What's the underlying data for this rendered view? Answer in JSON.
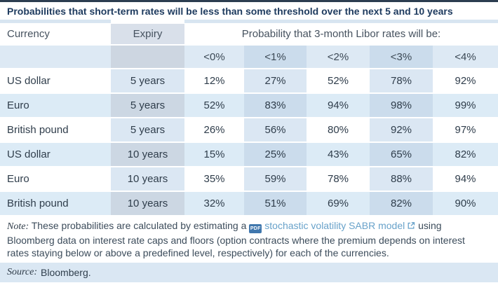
{
  "title": "Probabilities that short-term rates will be less than some threshold over the next 5 and 10 years",
  "colors": {
    "top_border": "#2c3d50",
    "title_navy": "#1d3a5e",
    "row_blue": "#dcebf6",
    "stripe_blue": "#dbe7f3",
    "stripe_overlap": "#cbdcec",
    "expiry_gray_blue": "#d9e0ea",
    "link_blue": "#68a2ca",
    "source_band_bg": "#dae7f3"
  },
  "chart_data": {
    "type": "table",
    "title": "Probabilities that short-term rates will be less than some threshold over the next 5 and 10 years",
    "group_header": "Probability that 3-month Libor rates will be:",
    "columns": [
      "Currency",
      "Expiry",
      "<0%",
      "<1%",
      "<2%",
      "<3%",
      "<4%"
    ],
    "rows": [
      [
        "US dollar",
        "5 years",
        "12%",
        "27%",
        "52%",
        "78%",
        "92%"
      ],
      [
        "Euro",
        "5 years",
        "52%",
        "83%",
        "94%",
        "98%",
        "99%"
      ],
      [
        "British pound",
        "5 years",
        "26%",
        "56%",
        "80%",
        "92%",
        "97%"
      ],
      [
        "US dollar",
        "10 years",
        "15%",
        "25%",
        "43%",
        "65%",
        "82%"
      ],
      [
        "Euro",
        "10 years",
        "35%",
        "59%",
        "78%",
        "88%",
        "94%"
      ],
      [
        "British pound",
        "10 years",
        "32%",
        "51%",
        "69%",
        "82%",
        "90%"
      ]
    ]
  },
  "note": {
    "label": "Note:",
    "text_before_link": "These probabilities are calculated by estimating a",
    "pdf_badge_text": "PDF",
    "link_text": "stochastic volatility SABR model",
    "text_after_link": "using Bloomberg data on interest rate caps and floors (option contracts where the premium depends on interest rates staying below or above a predefined level, respectively) for each of the currencies."
  },
  "source": {
    "label": "Source:",
    "text": "Bloomberg."
  }
}
